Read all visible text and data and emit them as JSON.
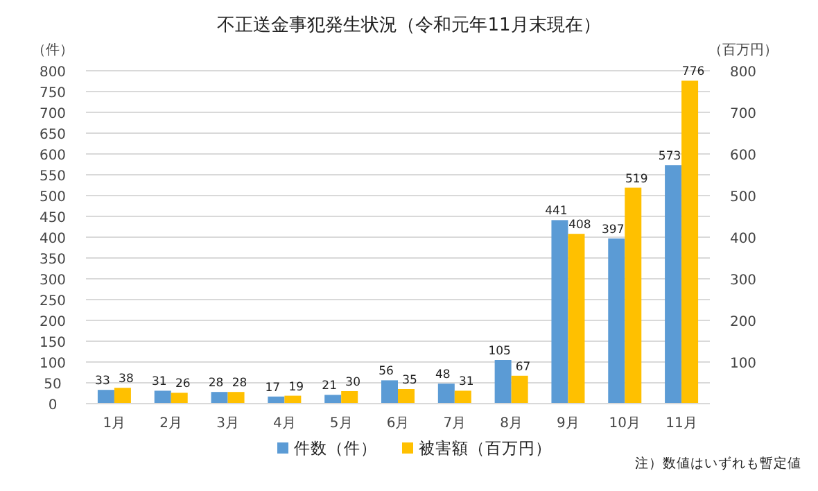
{
  "chart_data": {
    "type": "bar",
    "title": "不正送金事犯発生状況（令和元年11月末現在）",
    "ylabel": "（件）",
    "y2label": "（百万円）",
    "categories": [
      "1月",
      "2月",
      "3月",
      "4月",
      "5月",
      "6月",
      "7月",
      "8月",
      "9月",
      "10月",
      "11月"
    ],
    "series": [
      {
        "name": "件数（件）",
        "color": "#5b9bd5",
        "values": [
          33,
          31,
          28,
          17,
          21,
          56,
          48,
          105,
          441,
          397,
          573
        ]
      },
      {
        "name": "被害額（百万円）",
        "color": "#ffc000",
        "values": [
          38,
          26,
          28,
          19,
          30,
          35,
          31,
          67,
          408,
          519,
          776
        ]
      }
    ],
    "ylim": [
      0,
      800
    ],
    "yticks": [
      0,
      50,
      100,
      150,
      200,
      250,
      300,
      350,
      400,
      450,
      500,
      550,
      600,
      650,
      700,
      750,
      800
    ],
    "y2lim": [
      0,
      800
    ],
    "y2ticks": [
      100,
      200,
      300,
      400,
      500,
      600,
      700,
      800
    ],
    "grid": "y",
    "legend": "bottom",
    "data_labels": true,
    "annotations": [
      "注）数値はいずれも暫定値"
    ]
  }
}
